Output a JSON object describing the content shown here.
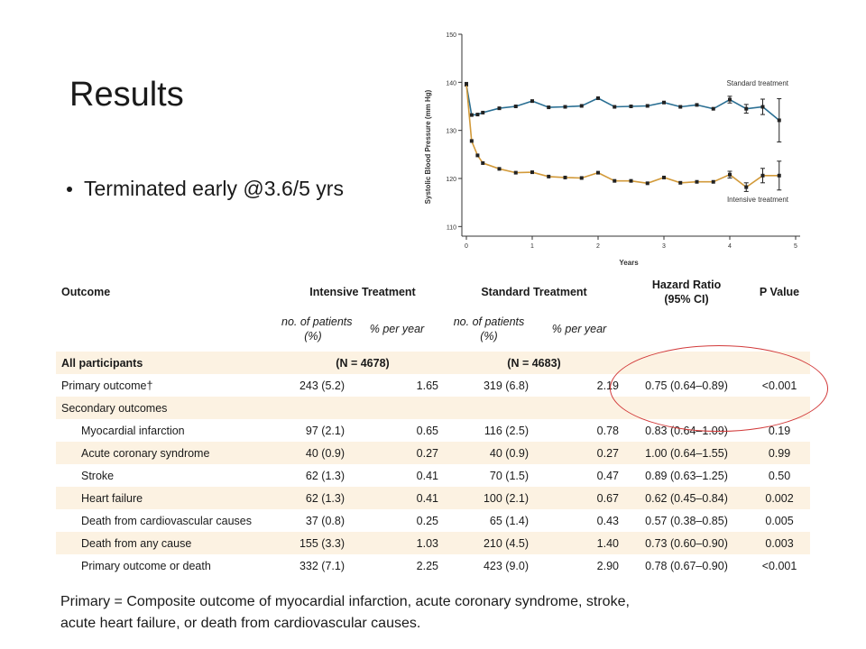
{
  "slide": {
    "title": "Results",
    "bullet": "Terminated early @3.6/5 yrs",
    "footnote_line1": "Primary = Composite outcome of myocardial infarction, acute coronary syndrome, stroke,",
    "footnote_line2": "acute heart failure, or death from cardiovascular causes."
  },
  "colors": {
    "standard": "#2a6f93",
    "intensive": "#d29a3a",
    "highlight_circle": "#d23a3a",
    "row_shade": "#fcf2e2"
  },
  "chart_data": {
    "type": "line",
    "xlabel": "Years",
    "ylabel": "Systolic Blood Pressure (mm Hg)",
    "xlim": [
      0,
      5
    ],
    "ylim": [
      108,
      150
    ],
    "xticks": [
      0,
      1,
      2,
      3,
      4,
      5
    ],
    "yticks": [
      110,
      120,
      130,
      140,
      150
    ],
    "series": [
      {
        "name": "Standard treatment",
        "x": [
          0,
          0.08,
          0.17,
          0.25,
          0.5,
          0.75,
          1.0,
          1.25,
          1.5,
          1.75,
          2.0,
          2.25,
          2.5,
          2.75,
          3.0,
          3.25,
          3.5,
          3.75,
          4.0,
          4.25,
          4.5,
          4.75
        ],
        "y": [
          139.5,
          133.2,
          133.3,
          133.7,
          134.6,
          135.0,
          136.1,
          134.8,
          134.9,
          135.1,
          136.7,
          134.9,
          135.0,
          135.1,
          135.8,
          134.9,
          135.3,
          134.5,
          136.4,
          134.5,
          134.9,
          132.1
        ],
        "err": [
          0.3,
          0.3,
          0.3,
          0.3,
          0.3,
          0.3,
          0.3,
          0.3,
          0.3,
          0.3,
          0.3,
          0.3,
          0.3,
          0.3,
          0.3,
          0.3,
          0.3,
          0.5,
          0.7,
          0.9,
          1.6,
          4.5
        ]
      },
      {
        "name": "Intensive treatment",
        "x": [
          0,
          0.08,
          0.17,
          0.25,
          0.5,
          0.75,
          1.0,
          1.25,
          1.5,
          1.75,
          2.0,
          2.25,
          2.5,
          2.75,
          3.0,
          3.25,
          3.5,
          3.75,
          4.0,
          4.25,
          4.5,
          4.75
        ],
        "y": [
          139.7,
          127.8,
          124.8,
          123.2,
          122.0,
          121.2,
          121.3,
          120.4,
          120.2,
          120.1,
          121.2,
          119.5,
          119.5,
          119.0,
          120.2,
          119.1,
          119.3,
          119.3,
          120.8,
          118.2,
          120.6,
          120.6
        ],
        "err": [
          0.3,
          0.3,
          0.3,
          0.3,
          0.3,
          0.3,
          0.3,
          0.3,
          0.3,
          0.3,
          0.3,
          0.3,
          0.3,
          0.3,
          0.3,
          0.3,
          0.3,
          0.5,
          0.7,
          0.9,
          1.5,
          3.0
        ]
      }
    ],
    "annotations": [
      "Standard treatment",
      "Intensive treatment"
    ]
  },
  "table": {
    "headers": {
      "outcome": "Outcome",
      "intensive": "Intensive Treatment",
      "standard": "Standard Treatment",
      "hr_line1": "Hazard Ratio",
      "hr_line2": "(95% CI)",
      "p": "P Value"
    },
    "subheaders": {
      "int_patients_1": "no. of patients",
      "int_patients_2": "(%)",
      "int_rate": "% per year",
      "std_patients_1": "no. of patients",
      "std_patients_2": "(%)",
      "std_rate": "% per year"
    },
    "all_participants": {
      "label": "All participants",
      "int_n": "(N = 4678)",
      "std_n": "(N = 4683)"
    },
    "primary": {
      "label": "Primary outcome",
      "dagger": "†",
      "int_pts": "243 (5.2)",
      "int_rate": "1.65",
      "std_pts": "319 (6.8)",
      "std_rate": "2.19",
      "hr": "0.75 (0.64–0.89)",
      "p": "<0.001"
    },
    "secondary_label": "Secondary outcomes",
    "rows": [
      {
        "label": "Myocardial infarction",
        "int_pts": "97 (2.1)",
        "int_rate": "0.65",
        "std_pts": "116 (2.5)",
        "std_rate": "0.78",
        "hr": "0.83 (0.64–1.09)",
        "p": "0.19"
      },
      {
        "label": "Acute coronary syndrome",
        "int_pts": "40 (0.9)",
        "int_rate": "0.27",
        "std_pts": "40 (0.9)",
        "std_rate": "0.27",
        "hr": "1.00 (0.64–1.55)",
        "p": "0.99"
      },
      {
        "label": "Stroke",
        "int_pts": "62 (1.3)",
        "int_rate": "0.41",
        "std_pts": "70 (1.5)",
        "std_rate": "0.47",
        "hr": "0.89 (0.63–1.25)",
        "p": "0.50"
      },
      {
        "label": "Heart failure",
        "int_pts": "62 (1.3)",
        "int_rate": "0.41",
        "std_pts": "100 (2.1)",
        "std_rate": "0.67",
        "hr": "0.62 (0.45–0.84)",
        "p": "0.002"
      },
      {
        "label": "Death from cardiovascular causes",
        "int_pts": "37 (0.8)",
        "int_rate": "0.25",
        "std_pts": "65 (1.4)",
        "std_rate": "0.43",
        "hr": "0.57 (0.38–0.85)",
        "p": "0.005"
      },
      {
        "label": "Death from any cause",
        "int_pts": "155 (3.3)",
        "int_rate": "1.03",
        "std_pts": "210 (4.5)",
        "std_rate": "1.40",
        "hr": "0.73 (0.60–0.90)",
        "p": "0.003"
      },
      {
        "label": "Primary outcome or death",
        "int_pts": "332 (7.1)",
        "int_rate": "2.25",
        "std_pts": "423 (9.0)",
        "std_rate": "2.90",
        "hr": "0.78 (0.67–0.90)",
        "p": "<0.001"
      }
    ]
  }
}
